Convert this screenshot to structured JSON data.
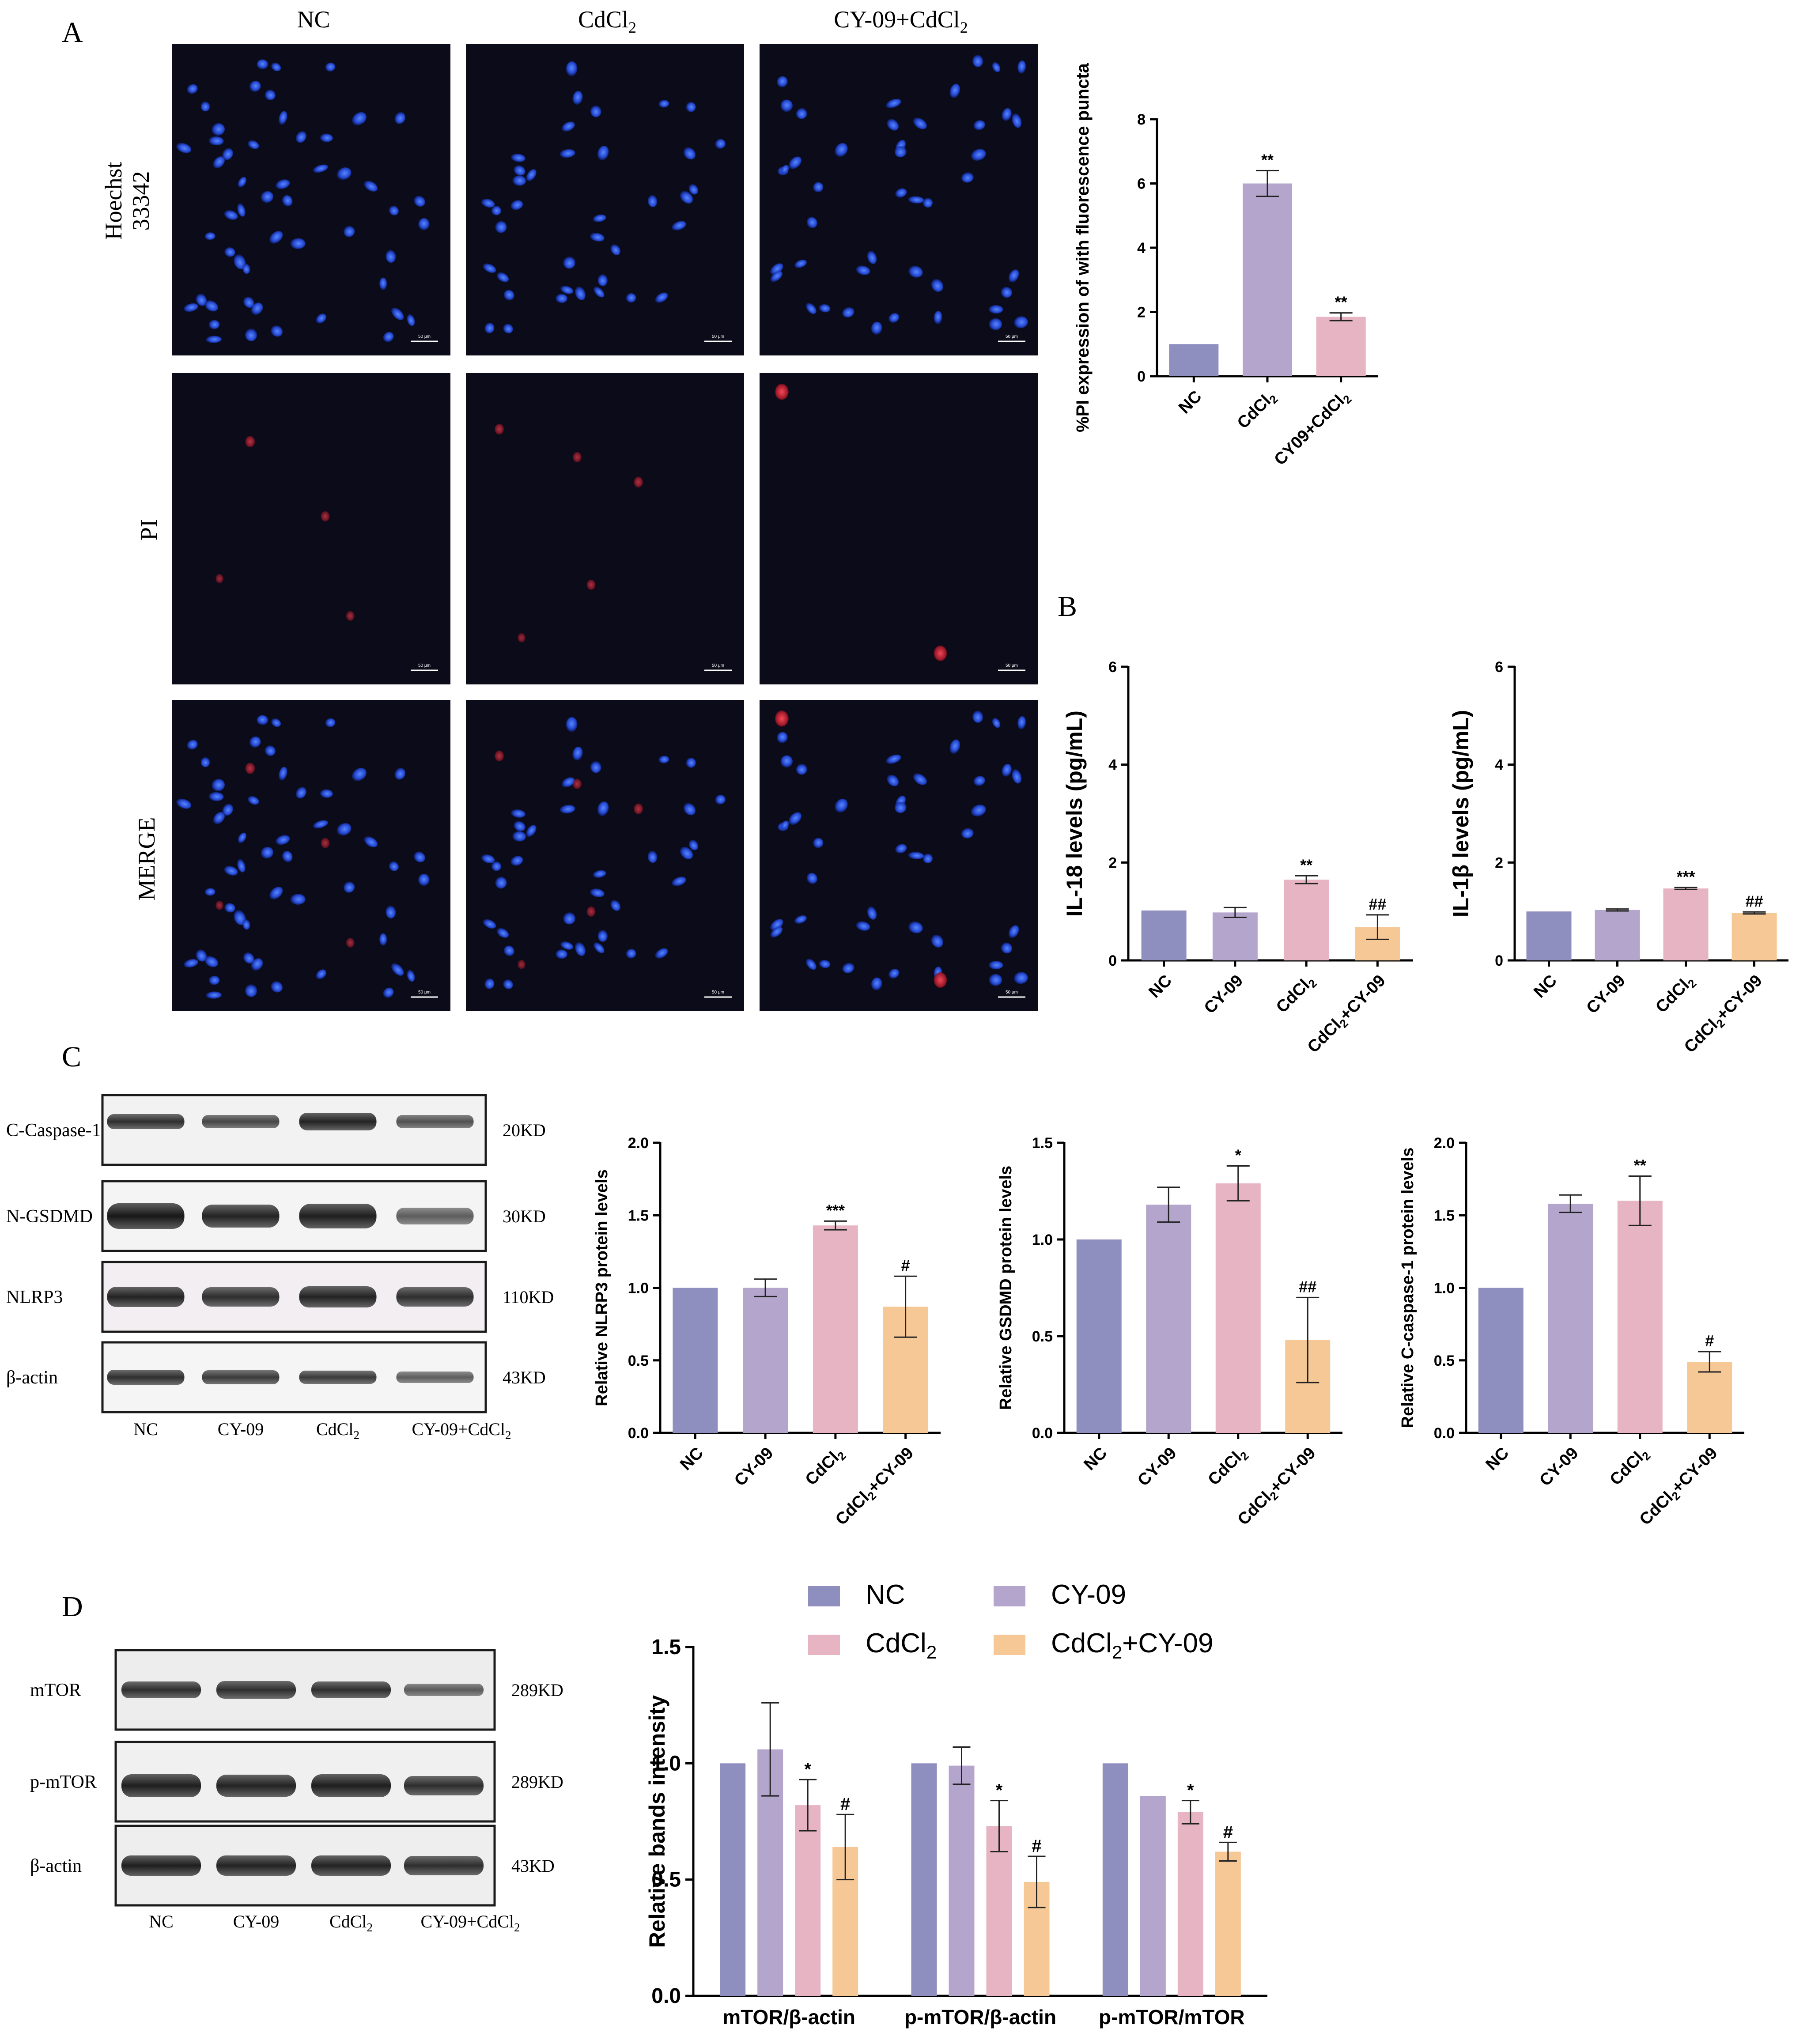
{
  "panel_letters": [
    "A",
    "B",
    "C",
    "D"
  ],
  "microscopy": {
    "columns": [
      "NC",
      "CdCl2",
      "CY-09+CdCl2"
    ],
    "rows": [
      "Hoechst 33342",
      "PI",
      "MERGE"
    ],
    "scale_bar_text": "50 μm"
  },
  "blot_c": {
    "proteins": [
      "C-Caspase-1",
      "N-GSDMD",
      "NLRP3",
      "β-actin"
    ],
    "sizes": [
      "20KD",
      "30KD",
      "110KD",
      "43KD"
    ],
    "lanes": [
      "NC",
      "CY-09",
      "CdCl2",
      "CY-09+CdCl2"
    ]
  },
  "blot_d": {
    "proteins": [
      "mTOR",
      "p-mTOR",
      "β-actin"
    ],
    "sizes": [
      "289KD",
      "289KD",
      "43KD"
    ],
    "lanes": [
      "NC",
      "CY-09",
      "CdCl2",
      "CY-09+CdCl2"
    ]
  },
  "colors": {
    "NC": "#8f8fbf",
    "CY-09": "#b4a5cc",
    "CdCl2": "#e6b4c3",
    "CdCl2+CY-09": "#f5c896",
    "nuclei": "#2a52d8",
    "pi": "#c0202a",
    "image_bg": "#0b0b1a"
  },
  "chart_data": [
    {
      "id": "A_pi",
      "type": "bar",
      "ylabel": "%PI expression of with fluorescence  puncta",
      "categories": [
        "NC",
        "CdCl2",
        "CY09+CdCl2"
      ],
      "values": [
        1.0,
        6.0,
        1.85
      ],
      "errors": [
        0,
        0.4,
        0.12
      ],
      "annotations": [
        "",
        "**",
        "**"
      ],
      "ylim": [
        0,
        8
      ],
      "yticks": [
        0,
        2,
        4,
        6,
        8
      ]
    },
    {
      "id": "B_il18",
      "type": "bar",
      "ylabel": "IL-18 levels (pg/mL)",
      "categories": [
        "NC",
        "CY-09",
        "CdCl2",
        "CdCl2+CY-09"
      ],
      "values": [
        1.02,
        0.98,
        1.65,
        0.68
      ],
      "errors": [
        0,
        0.1,
        0.08,
        0.25
      ],
      "annotations": [
        "",
        "",
        "**",
        "##"
      ],
      "ylim": [
        0,
        6
      ],
      "yticks": [
        0,
        2,
        4,
        6
      ]
    },
    {
      "id": "B_il1b",
      "type": "bar",
      "ylabel": "IL-1β levels (pg/mL)",
      "categories": [
        "NC",
        "CY-09",
        "CdCl2",
        "CdCl2+CY-09"
      ],
      "values": [
        1.0,
        1.03,
        1.47,
        0.97
      ],
      "errors": [
        0,
        0.02,
        0.02,
        0.02
      ],
      "annotations": [
        "",
        "",
        "***",
        "##"
      ],
      "ylim": [
        0,
        6
      ],
      "yticks": [
        0,
        2,
        4,
        6
      ]
    },
    {
      "id": "C_nlrp3",
      "type": "bar",
      "ylabel": "Relative NLRP3 protein levels",
      "categories": [
        "NC",
        "CY-09",
        "CdCl2",
        "CdCl2+CY-09"
      ],
      "values": [
        1.0,
        1.0,
        1.43,
        0.87
      ],
      "errors": [
        0,
        0.06,
        0.03,
        0.21
      ],
      "annotations": [
        "",
        "",
        "***",
        "#"
      ],
      "ylim": [
        0,
        2.0
      ],
      "yticks": [
        0.0,
        0.5,
        1.0,
        1.5,
        2.0
      ]
    },
    {
      "id": "C_gsdmd",
      "type": "bar",
      "ylabel": "Relative GSDMD protein levels",
      "categories": [
        "NC",
        "CY-09",
        "CdCl2",
        "CdCl2+CY-09"
      ],
      "values": [
        1.0,
        1.18,
        1.29,
        0.48
      ],
      "errors": [
        0,
        0.09,
        0.09,
        0.22
      ],
      "annotations": [
        "",
        "",
        "*",
        "##"
      ],
      "ylim": [
        0,
        1.5
      ],
      "yticks": [
        0.0,
        0.5,
        1.0,
        1.5
      ]
    },
    {
      "id": "C_casp1",
      "type": "bar",
      "ylabel": "Relative C-caspase-1 protein levels",
      "categories": [
        "NC",
        "CY-09",
        "CdCl2",
        "CdCl2+CY-09"
      ],
      "values": [
        1.0,
        1.58,
        1.6,
        0.49
      ],
      "errors": [
        0,
        0.06,
        0.17,
        0.07
      ],
      "annotations": [
        "",
        "",
        "**",
        "#"
      ],
      "ylim": [
        0,
        2.0
      ],
      "yticks": [
        0.0,
        0.5,
        1.0,
        1.5,
        2.0
      ]
    },
    {
      "id": "D_mtor",
      "type": "bar",
      "ylabel": "Relative bands intensity",
      "categories": [
        "mTOR/β-actin",
        "p-mTOR/β-actin",
        "p-mTOR/mTOR"
      ],
      "series": [
        {
          "name": "NC",
          "values": [
            1.0,
            1.0,
            1.0
          ],
          "errors": [
            0,
            0,
            0
          ],
          "annotations": [
            "",
            "",
            ""
          ]
        },
        {
          "name": "CY-09",
          "values": [
            1.06,
            0.99,
            0.86
          ],
          "errors": [
            0.2,
            0.08,
            0.0
          ],
          "annotations": [
            "",
            "",
            ""
          ]
        },
        {
          "name": "CdCl2",
          "values": [
            0.82,
            0.73,
            0.79
          ],
          "errors": [
            0.11,
            0.11,
            0.05
          ],
          "annotations": [
            "*",
            "*",
            "*"
          ]
        },
        {
          "name": "CdCl2+CY-09",
          "values": [
            0.64,
            0.49,
            0.62
          ],
          "errors": [
            0.14,
            0.11,
            0.04
          ],
          "annotations": [
            "#",
            "#",
            "#"
          ]
        }
      ],
      "legend": "top",
      "ylim": [
        0,
        1.5
      ],
      "yticks": [
        0.0,
        0.5,
        1.0,
        1.5
      ]
    }
  ]
}
